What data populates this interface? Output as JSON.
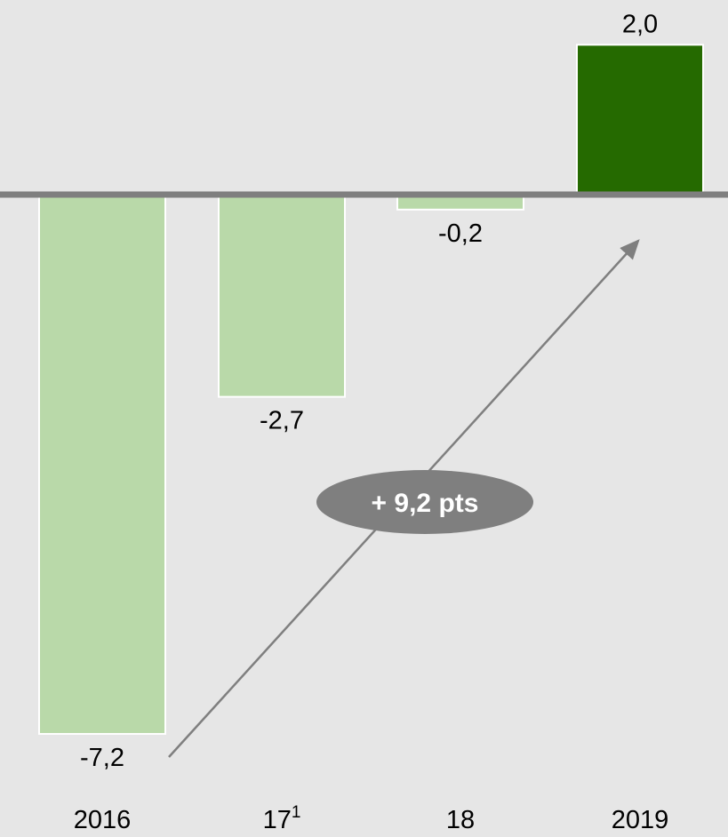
{
  "chart_data": {
    "type": "bar",
    "categories": [
      "2016",
      "17",
      "18",
      "2019"
    ],
    "category_superscripts": [
      "",
      "1",
      "",
      ""
    ],
    "values": [
      -7.2,
      -2.7,
      -0.2,
      2.0
    ],
    "value_labels": [
      "-7,2",
      "-2,7",
      "-0,2",
      "2,0"
    ],
    "colors": [
      "#b9d9a9",
      "#b9d9a9",
      "#b9d9a9",
      "#256a00"
    ],
    "baseline_color": "#7f7f7f",
    "title": "",
    "xlabel": "",
    "ylabel": "",
    "ylim": [
      -7.2,
      2.0
    ],
    "grid": false,
    "annotation": {
      "text": "+ 9,2 pts",
      "arrow_from_category": "2016",
      "arrow_to_category": "2019",
      "color": "#7f7f7f"
    }
  }
}
